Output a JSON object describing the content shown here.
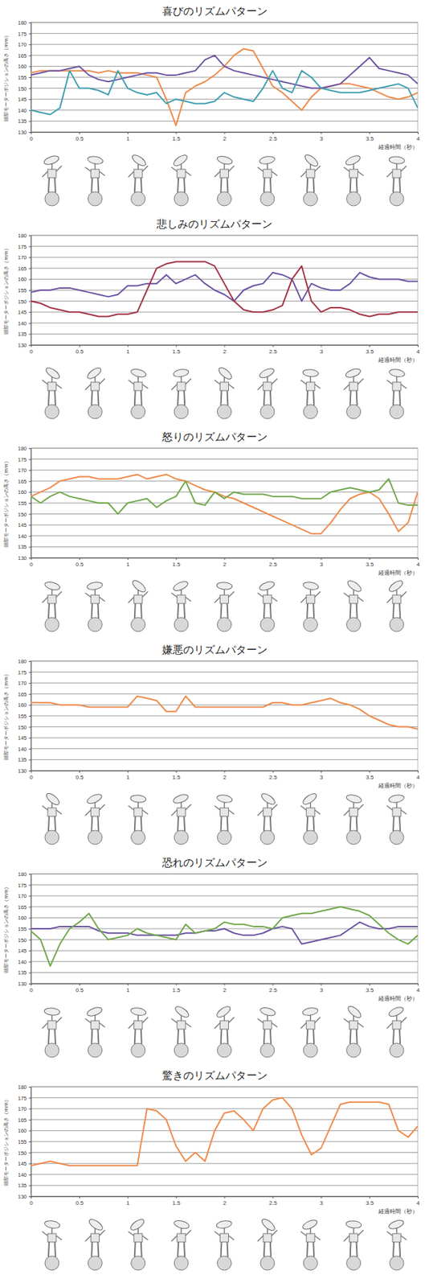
{
  "chart_data": [
    {
      "type": "line",
      "title": "喜びのリズムパターン",
      "x_label": "経過時間（秒）",
      "y_label": "頭部モーターポジションの高さ（mm）",
      "x": [
        0,
        0.1,
        0.2,
        0.3,
        0.4,
        0.5,
        0.6,
        0.7,
        0.8,
        0.9,
        1,
        1.1,
        1.2,
        1.3,
        1.4,
        1.5,
        1.6,
        1.7,
        1.8,
        1.9,
        2,
        2.1,
        2.2,
        2.3,
        2.4,
        2.5,
        2.6,
        2.7,
        2.8,
        2.9,
        3,
        3.1,
        3.2,
        3.3,
        3.4,
        3.5,
        3.6,
        3.7,
        3.8,
        3.9,
        4
      ],
      "xlim": [
        0,
        4
      ],
      "xticks": [
        0,
        0.5,
        1,
        1.5,
        2,
        2.5,
        3,
        3.5,
        4
      ],
      "ylim": [
        130,
        180
      ],
      "yticks": [
        130,
        135,
        140,
        145,
        150,
        155,
        160,
        165,
        170,
        175,
        180
      ],
      "grid": true,
      "series": [
        {
          "color": "#f08a4b",
          "values": [
            157,
            158,
            158,
            158,
            158,
            158,
            158,
            157,
            158,
            157,
            157,
            157,
            156,
            155,
            145,
            133,
            148,
            151,
            153,
            156,
            160,
            165,
            168,
            167,
            159,
            151,
            148,
            144,
            140,
            146,
            150,
            151,
            152,
            152,
            151,
            150,
            148,
            146,
            145,
            146,
            148
          ]
        },
        {
          "color": "#6b52a3",
          "values": [
            156,
            157,
            158,
            158,
            159,
            160,
            156,
            154,
            153,
            154,
            155,
            156,
            157,
            157,
            156,
            156,
            157,
            158,
            163,
            165,
            160,
            158,
            157,
            156,
            155,
            154,
            153,
            152,
            151,
            150,
            150,
            151,
            152,
            156,
            160,
            164,
            159,
            158,
            157,
            156,
            152
          ]
        },
        {
          "color": "#3e9fb0",
          "values": [
            140,
            139,
            138,
            141,
            158,
            150,
            150,
            149,
            147,
            158,
            150,
            148,
            147,
            148,
            143,
            145,
            144,
            143,
            143,
            144,
            148,
            146,
            145,
            144,
            150,
            158,
            150,
            148,
            158,
            155,
            150,
            149,
            148,
            148,
            148,
            149,
            150,
            151,
            152,
            150,
            141
          ]
        }
      ]
    },
    {
      "type": "line",
      "title": "悲しみのリズムパターン",
      "x_label": "経過時間（秒）",
      "y_label": "頭部モーターポジションの高さ（mm）",
      "x": [
        0,
        0.1,
        0.2,
        0.3,
        0.4,
        0.5,
        0.6,
        0.7,
        0.8,
        0.9,
        1,
        1.1,
        1.2,
        1.3,
        1.4,
        1.5,
        1.6,
        1.7,
        1.8,
        1.9,
        2,
        2.1,
        2.2,
        2.3,
        2.4,
        2.5,
        2.6,
        2.7,
        2.8,
        2.9,
        3,
        3.1,
        3.2,
        3.3,
        3.4,
        3.5,
        3.6,
        3.7,
        3.8,
        3.9,
        4
      ],
      "xlim": [
        0,
        4
      ],
      "xticks": [
        0,
        0.5,
        1,
        1.5,
        2,
        2.5,
        3,
        3.5,
        4
      ],
      "ylim": [
        130,
        180
      ],
      "yticks": [
        130,
        135,
        140,
        145,
        150,
        155,
        160,
        165,
        170,
        175,
        180
      ],
      "grid": true,
      "series": [
        {
          "color": "#6b52a3",
          "values": [
            154,
            155,
            155,
            156,
            156,
            155,
            154,
            153,
            152,
            153,
            157,
            157,
            158,
            158,
            162,
            158,
            160,
            162,
            158,
            155,
            153,
            150,
            155,
            157,
            158,
            163,
            162,
            160,
            150,
            158,
            156,
            155,
            155,
            158,
            163,
            161,
            160,
            160,
            160,
            159,
            159
          ]
        },
        {
          "color": "#a33244",
          "values": [
            150,
            149,
            147,
            146,
            145,
            145,
            144,
            143,
            143,
            144,
            144,
            145,
            155,
            165,
            167,
            168,
            168,
            168,
            168,
            166,
            158,
            150,
            146,
            145,
            145,
            146,
            148,
            160,
            166,
            150,
            145,
            147,
            147,
            146,
            144,
            143,
            144,
            144,
            145,
            145,
            145
          ]
        }
      ]
    },
    {
      "type": "line",
      "title": "怒りのリズムパターン",
      "x_label": "経過時間（秒）",
      "y_label": "頭部モーターポジションの高さ（mm）",
      "x": [
        0,
        0.1,
        0.2,
        0.3,
        0.4,
        0.5,
        0.6,
        0.7,
        0.8,
        0.9,
        1,
        1.1,
        1.2,
        1.3,
        1.4,
        1.5,
        1.6,
        1.7,
        1.8,
        1.9,
        2,
        2.1,
        2.2,
        2.3,
        2.4,
        2.5,
        2.6,
        2.7,
        2.8,
        2.9,
        3,
        3.1,
        3.2,
        3.3,
        3.4,
        3.5,
        3.6,
        3.7,
        3.8,
        3.9,
        4
      ],
      "xlim": [
        0,
        4
      ],
      "xticks": [
        0,
        0.5,
        1,
        1.5,
        2,
        2.5,
        3,
        3.5,
        4
      ],
      "ylim": [
        130,
        180
      ],
      "yticks": [
        130,
        135,
        140,
        145,
        150,
        155,
        160,
        165,
        170,
        175,
        180
      ],
      "grid": true,
      "series": [
        {
          "color": "#f08a4b",
          "values": [
            158,
            160,
            162,
            165,
            166,
            167,
            167,
            166,
            166,
            166,
            167,
            168,
            166,
            167,
            168,
            166,
            165,
            163,
            161,
            160,
            158,
            157,
            155,
            153,
            151,
            149,
            147,
            145,
            143,
            141,
            141,
            146,
            152,
            157,
            159,
            160,
            157,
            150,
            142,
            146,
            160
          ]
        },
        {
          "color": "#70a84a",
          "values": [
            158,
            155,
            158,
            160,
            158,
            157,
            156,
            155,
            155,
            150,
            155,
            156,
            157,
            153,
            156,
            158,
            165,
            155,
            154,
            160,
            157,
            160,
            159,
            159,
            159,
            158,
            158,
            158,
            157,
            157,
            157,
            160,
            161,
            162,
            161,
            160,
            161,
            166,
            155,
            154,
            154
          ]
        }
      ]
    },
    {
      "type": "line",
      "title": "嫌悪のリズムパターン",
      "x_label": "経過時間（秒）",
      "y_label": "頭部モーターポジションの高さ（mm）",
      "x": [
        0,
        0.1,
        0.2,
        0.3,
        0.4,
        0.5,
        0.6,
        0.7,
        0.8,
        0.9,
        1,
        1.1,
        1.2,
        1.3,
        1.4,
        1.5,
        1.6,
        1.7,
        1.8,
        1.9,
        2,
        2.1,
        2.2,
        2.3,
        2.4,
        2.5,
        2.6,
        2.7,
        2.8,
        2.9,
        3,
        3.1,
        3.2,
        3.3,
        3.4,
        3.5,
        3.6,
        3.7,
        3.8,
        3.9,
        4
      ],
      "xlim": [
        0,
        4
      ],
      "xticks": [
        0,
        0.5,
        1,
        1.5,
        2,
        2.5,
        3,
        3.5,
        4
      ],
      "ylim": [
        130,
        180
      ],
      "yticks": [
        130,
        135,
        140,
        145,
        150,
        155,
        160,
        165,
        170,
        175,
        180
      ],
      "grid": true,
      "series": [
        {
          "color": "#f08a4b",
          "values": [
            161,
            161,
            161,
            160,
            160,
            160,
            159,
            159,
            159,
            159,
            159,
            164,
            163,
            162,
            157,
            157,
            164,
            159,
            159,
            159,
            159,
            159,
            159,
            159,
            159,
            161,
            161,
            160,
            160,
            161,
            162,
            163,
            161,
            160,
            158,
            155,
            153,
            151,
            150,
            150,
            149
          ]
        }
      ]
    },
    {
      "type": "line",
      "title": "恐れのリズムパターン",
      "x_label": "経過時間（秒）",
      "y_label": "頭部モーターポジションの高さ（mm）",
      "x": [
        0,
        0.1,
        0.2,
        0.3,
        0.4,
        0.5,
        0.6,
        0.7,
        0.8,
        0.9,
        1,
        1.1,
        1.2,
        1.3,
        1.4,
        1.5,
        1.6,
        1.7,
        1.8,
        1.9,
        2,
        2.1,
        2.2,
        2.3,
        2.4,
        2.5,
        2.6,
        2.7,
        2.8,
        2.9,
        3,
        3.1,
        3.2,
        3.3,
        3.4,
        3.5,
        3.6,
        3.7,
        3.8,
        3.9,
        4
      ],
      "xlim": [
        0,
        4
      ],
      "xticks": [
        0,
        0.5,
        1,
        1.5,
        2,
        2.5,
        3,
        3.5,
        4
      ],
      "ylim": [
        130,
        180
      ],
      "yticks": [
        130,
        135,
        140,
        145,
        150,
        155,
        160,
        165,
        170,
        175,
        180
      ],
      "grid": true,
      "series": [
        {
          "color": "#6b52a3",
          "values": [
            155,
            155,
            155,
            156,
            156,
            156,
            156,
            154,
            153,
            153,
            153,
            152,
            152,
            152,
            152,
            152,
            153,
            153,
            154,
            154,
            155,
            153,
            152,
            152,
            153,
            155,
            156,
            155,
            148,
            149,
            150,
            151,
            152,
            155,
            158,
            156,
            155,
            155,
            156,
            156,
            156
          ]
        },
        {
          "color": "#70a84a",
          "values": [
            154,
            150,
            138,
            148,
            155,
            158,
            162,
            155,
            150,
            151,
            152,
            155,
            153,
            152,
            151,
            150,
            157,
            153,
            154,
            155,
            158,
            157,
            157,
            156,
            156,
            155,
            160,
            161,
            162,
            162,
            163,
            164,
            165,
            164,
            163,
            161,
            157,
            153,
            150,
            148,
            152
          ]
        }
      ]
    },
    {
      "type": "line",
      "title": "驚きのリズムパターン",
      "x_label": "経過時間（秒）",
      "y_label": "頭部モーターポジションの高さ（mm）",
      "x": [
        0,
        0.1,
        0.2,
        0.3,
        0.4,
        0.5,
        0.6,
        0.7,
        0.8,
        0.9,
        1,
        1.1,
        1.2,
        1.3,
        1.4,
        1.5,
        1.6,
        1.7,
        1.8,
        1.9,
        2,
        2.1,
        2.2,
        2.3,
        2.4,
        2.5,
        2.6,
        2.7,
        2.8,
        2.9,
        3,
        3.1,
        3.2,
        3.3,
        3.4,
        3.5,
        3.6,
        3.7,
        3.8,
        3.9,
        4
      ],
      "xlim": [
        0,
        4
      ],
      "xticks": [
        0,
        0.5,
        1,
        1.5,
        2,
        2.5,
        3,
        3.5,
        4
      ],
      "ylim": [
        130,
        180
      ],
      "yticks": [
        130,
        135,
        140,
        145,
        150,
        155,
        160,
        165,
        170,
        175,
        180
      ],
      "grid": true,
      "series": [
        {
          "color": "#f08a4b",
          "values": [
            144,
            145,
            146,
            145,
            144,
            144,
            144,
            144,
            144,
            144,
            144,
            144,
            170,
            169,
            165,
            153,
            146,
            150,
            146,
            160,
            168,
            169,
            165,
            160,
            170,
            174,
            175,
            170,
            158,
            149,
            152,
            162,
            172,
            173,
            173,
            173,
            173,
            172,
            160,
            157,
            162
          ]
        }
      ]
    }
  ]
}
